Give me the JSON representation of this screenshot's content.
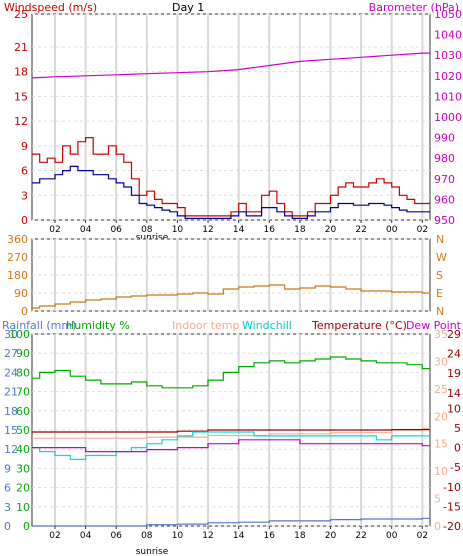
{
  "header": {
    "title": "Day 1",
    "left_label": "Windspeed (m/s)",
    "right_label": "Barometer (hPa)"
  },
  "time_ticks": [
    "02",
    "04",
    "06",
    "08",
    "10",
    "12",
    "14",
    "16",
    "18",
    "20",
    "22",
    "00",
    "02"
  ],
  "sunrise_label": "sunrise",
  "colors": {
    "wind": "#cc0000",
    "wind_avg": "#000099",
    "barometer": "#cc00cc",
    "wind_dir": "#cc7a1a",
    "rainfall": "#5577cc",
    "humidity": "#00aa00",
    "indoor": "#f0b090",
    "windchill": "#00dddd",
    "temperature": "#990000",
    "dewpoint": "#cc00cc"
  },
  "chart_data": [
    {
      "type": "line",
      "panel": "wind-barometer",
      "left_axis": {
        "label": "Windspeed (m/s)",
        "ticks": [
          0,
          3,
          6,
          9,
          12,
          15,
          18,
          21,
          25
        ],
        "range": [
          0,
          25
        ]
      },
      "right_axis": {
        "label": "Barometer (hPa)",
        "ticks": [
          950,
          960,
          970,
          980,
          990,
          1000,
          1010,
          1020,
          1030,
          1040,
          1050
        ],
        "range": [
          950,
          1050
        ]
      },
      "x_range": [
        0.5,
        26.5
      ],
      "series": [
        {
          "name": "Windspeed (m/s)",
          "axis": "left",
          "color": "#cc0000",
          "x": [
            0.5,
            1.0,
            1.5,
            2.0,
            2.5,
            3.0,
            3.5,
            4.0,
            4.5,
            5.0,
            5.5,
            6.0,
            6.5,
            7.0,
            7.5,
            8.0,
            8.5,
            9.0,
            9.5,
            10.0,
            10.5,
            11.0,
            11.5,
            12.0,
            12.5,
            13.0,
            13.5,
            14.0,
            14.5,
            15.0,
            15.5,
            16.0,
            16.5,
            17.0,
            17.5,
            18.0,
            18.5,
            19.0,
            19.5,
            20.0,
            20.5,
            21.0,
            21.5,
            22.0,
            22.5,
            23.0,
            23.5,
            24.0,
            24.5,
            25.0,
            25.5,
            26.0,
            26.5
          ],
          "y": [
            8,
            7,
            7.5,
            7,
            9,
            8,
            9.5,
            10,
            8,
            8,
            9,
            8,
            7,
            5,
            3,
            3.5,
            2.5,
            2,
            2,
            1.5,
            0.5,
            0.5,
            0.5,
            0.5,
            0.5,
            0.5,
            1,
            2,
            1,
            1,
            3,
            3.5,
            2,
            1,
            0.5,
            0.5,
            1,
            2,
            2,
            3,
            4,
            4.5,
            4,
            4,
            4.5,
            5,
            4.5,
            4,
            3,
            2.5,
            2,
            2,
            2
          ]
        },
        {
          "name": "Wind average",
          "axis": "left",
          "color": "#000099",
          "x": [
            0.5,
            1.0,
            1.5,
            2.0,
            2.5,
            3.0,
            3.5,
            4.0,
            4.5,
            5.0,
            5.5,
            6.0,
            6.5,
            7.0,
            7.5,
            8.0,
            8.5,
            9.0,
            9.5,
            10.0,
            10.5,
            11.0,
            11.5,
            12.0,
            12.5,
            13.0,
            13.5,
            14.0,
            14.5,
            15.0,
            15.5,
            16.0,
            16.5,
            17.0,
            17.5,
            18.0,
            18.5,
            19.0,
            19.5,
            20.0,
            20.5,
            21.0,
            21.5,
            22.0,
            22.5,
            23.0,
            23.5,
            24.0,
            24.5,
            25.0,
            25.5,
            26.0,
            26.5
          ],
          "y": [
            4.5,
            5,
            5,
            5.5,
            6,
            6.5,
            6,
            6,
            5.5,
            5.5,
            5,
            4.5,
            4,
            3,
            2,
            1.8,
            1.5,
            1.2,
            1,
            0.5,
            0.2,
            0.2,
            0.2,
            0.2,
            0.2,
            0.2,
            0.5,
            1,
            0.5,
            0.5,
            1.5,
            1.5,
            1,
            0.5,
            0.2,
            0.2,
            0.5,
            1,
            1,
            1.5,
            2,
            2,
            1.8,
            1.8,
            2,
            2,
            1.8,
            1.5,
            1.2,
            1,
            1,
            1,
            1
          ]
        },
        {
          "name": "Barometer (hPa)",
          "axis": "right",
          "color": "#cc00cc",
          "x": [
            0.5,
            2,
            4,
            6,
            8,
            10,
            12,
            14,
            16,
            18,
            20,
            22,
            24,
            26,
            26.5
          ],
          "y": [
            1019,
            1019.5,
            1020,
            1020.5,
            1021,
            1021.5,
            1022,
            1023,
            1025,
            1027,
            1028,
            1029,
            1030,
            1031,
            1031
          ]
        }
      ]
    },
    {
      "type": "line",
      "panel": "wind-direction",
      "left_axis": {
        "ticks": [
          0,
          90,
          180,
          270,
          360
        ],
        "range": [
          0,
          360
        ]
      },
      "right_axis": {
        "ticks": [
          "N",
          "W",
          "S",
          "E",
          "N"
        ]
      },
      "x_range": [
        0.5,
        26.5
      ],
      "series": [
        {
          "name": "Wind direction",
          "axis": "left",
          "color": "#cc7a1a",
          "x": [
            0.5,
            1,
            2,
            3,
            4,
            5,
            6,
            7,
            8,
            9,
            10,
            11,
            12,
            13,
            14,
            15,
            16,
            17,
            18,
            19,
            20,
            21,
            22,
            23,
            24,
            25,
            26,
            26.5
          ],
          "y": [
            15,
            25,
            35,
            45,
            55,
            60,
            70,
            75,
            80,
            80,
            85,
            90,
            85,
            110,
            120,
            125,
            130,
            110,
            115,
            125,
            120,
            110,
            100,
            100,
            95,
            95,
            90,
            85
          ]
        }
      ]
    },
    {
      "type": "line",
      "panel": "temperature-humidity",
      "axes": [
        {
          "label": "Rainfall (mm)",
          "ticks": [
            0,
            3,
            6,
            9,
            12,
            15,
            18,
            21,
            24,
            27,
            30
          ],
          "range": [
            0,
            30
          ]
        },
        {
          "label": "Humidity %",
          "ticks": [
            0,
            10,
            20,
            30,
            40,
            50,
            60,
            70,
            80,
            90,
            100
          ],
          "range": [
            0,
            100
          ]
        },
        {
          "label": "Indoor temp",
          "ticks": [
            0,
            5,
            10,
            15,
            20,
            25,
            30,
            35
          ],
          "range": [
            0,
            35
          ]
        },
        {
          "label": "Temperature (°C)",
          "ticks": [
            -20,
            -15,
            -10,
            -5,
            0,
            5,
            10,
            14,
            19,
            24,
            29
          ],
          "range": [
            -20,
            29
          ]
        }
      ],
      "legend": [
        "Rainfall (mm)",
        "Humidity %",
        "Indoor temp",
        "Windchill",
        "Temperature (°C)",
        "Dew Point"
      ],
      "x_range": [
        0.5,
        26.5
      ],
      "series": [
        {
          "name": "Humidity %",
          "axis": "Humidity %",
          "color": "#00aa00",
          "x": [
            0.5,
            1,
            2,
            3,
            4,
            5,
            6,
            7,
            8,
            9,
            10,
            11,
            12,
            13,
            14,
            15,
            16,
            17,
            18,
            19,
            20,
            21,
            22,
            23,
            24,
            25,
            26,
            26.5
          ],
          "y": [
            77,
            80,
            81,
            78,
            76,
            74,
            74,
            75,
            73,
            72,
            72,
            73,
            76,
            80,
            83,
            85,
            86,
            85,
            86,
            87,
            88,
            87,
            86,
            85,
            85,
            84,
            82,
            82
          ]
        },
        {
          "name": "Indoor temp",
          "axis": "Indoor temp",
          "color": "#f0b090",
          "x": [
            0.5,
            4,
            8,
            12,
            16,
            20,
            24,
            26,
            26.5
          ],
          "y": [
            16,
            16,
            16.2,
            16.5,
            16.8,
            17,
            17.5,
            17.8,
            17.8
          ]
        },
        {
          "name": "Temperature (°C)",
          "axis": "Temperature (°C)",
          "color": "#990000",
          "x": [
            0.5,
            4,
            8,
            10,
            12,
            16,
            20,
            24,
            26.5
          ],
          "y": [
            4,
            4,
            4,
            4.2,
            4.5,
            4.5,
            4.5,
            4.6,
            4.6
          ]
        },
        {
          "name": "Windchill",
          "axis": "Temperature (°C)",
          "color": "#00dddd",
          "x": [
            0.5,
            1,
            2,
            3,
            4,
            5,
            6,
            7,
            8,
            9,
            10,
            11,
            12,
            13,
            14,
            15,
            16,
            17,
            18,
            19,
            20,
            21,
            22,
            23,
            24,
            25,
            26,
            26.5
          ],
          "y": [
            0,
            -1,
            -2,
            -3,
            -2,
            -2,
            -1,
            0,
            1,
            2,
            3,
            4,
            4,
            4,
            4,
            3,
            3,
            3,
            3,
            3,
            3,
            3,
            3,
            2,
            3,
            3,
            3,
            3
          ]
        },
        {
          "name": "Dew Point",
          "axis": "Temperature (°C)",
          "color": "#cc00cc",
          "x": [
            0.5,
            2,
            4,
            6,
            8,
            10,
            12,
            14,
            16,
            18,
            20,
            22,
            24,
            26,
            26.5
          ],
          "y": [
            0,
            0,
            -1,
            -1,
            -0.5,
            0,
            1,
            2,
            2,
            1,
            1,
            1,
            1,
            0.5,
            0.5
          ]
        },
        {
          "name": "Rainfall (mm)",
          "axis": "Rainfall (mm)",
          "color": "#5577cc",
          "x": [
            0.5,
            4,
            8,
            10,
            12,
            14,
            16,
            18,
            20,
            22,
            24,
            26,
            26.5
          ],
          "y": [
            0,
            0,
            0.2,
            0.3,
            0.5,
            0.6,
            0.8,
            0.8,
            1,
            1.1,
            1.1,
            1.2,
            1.2
          ]
        }
      ]
    }
  ]
}
